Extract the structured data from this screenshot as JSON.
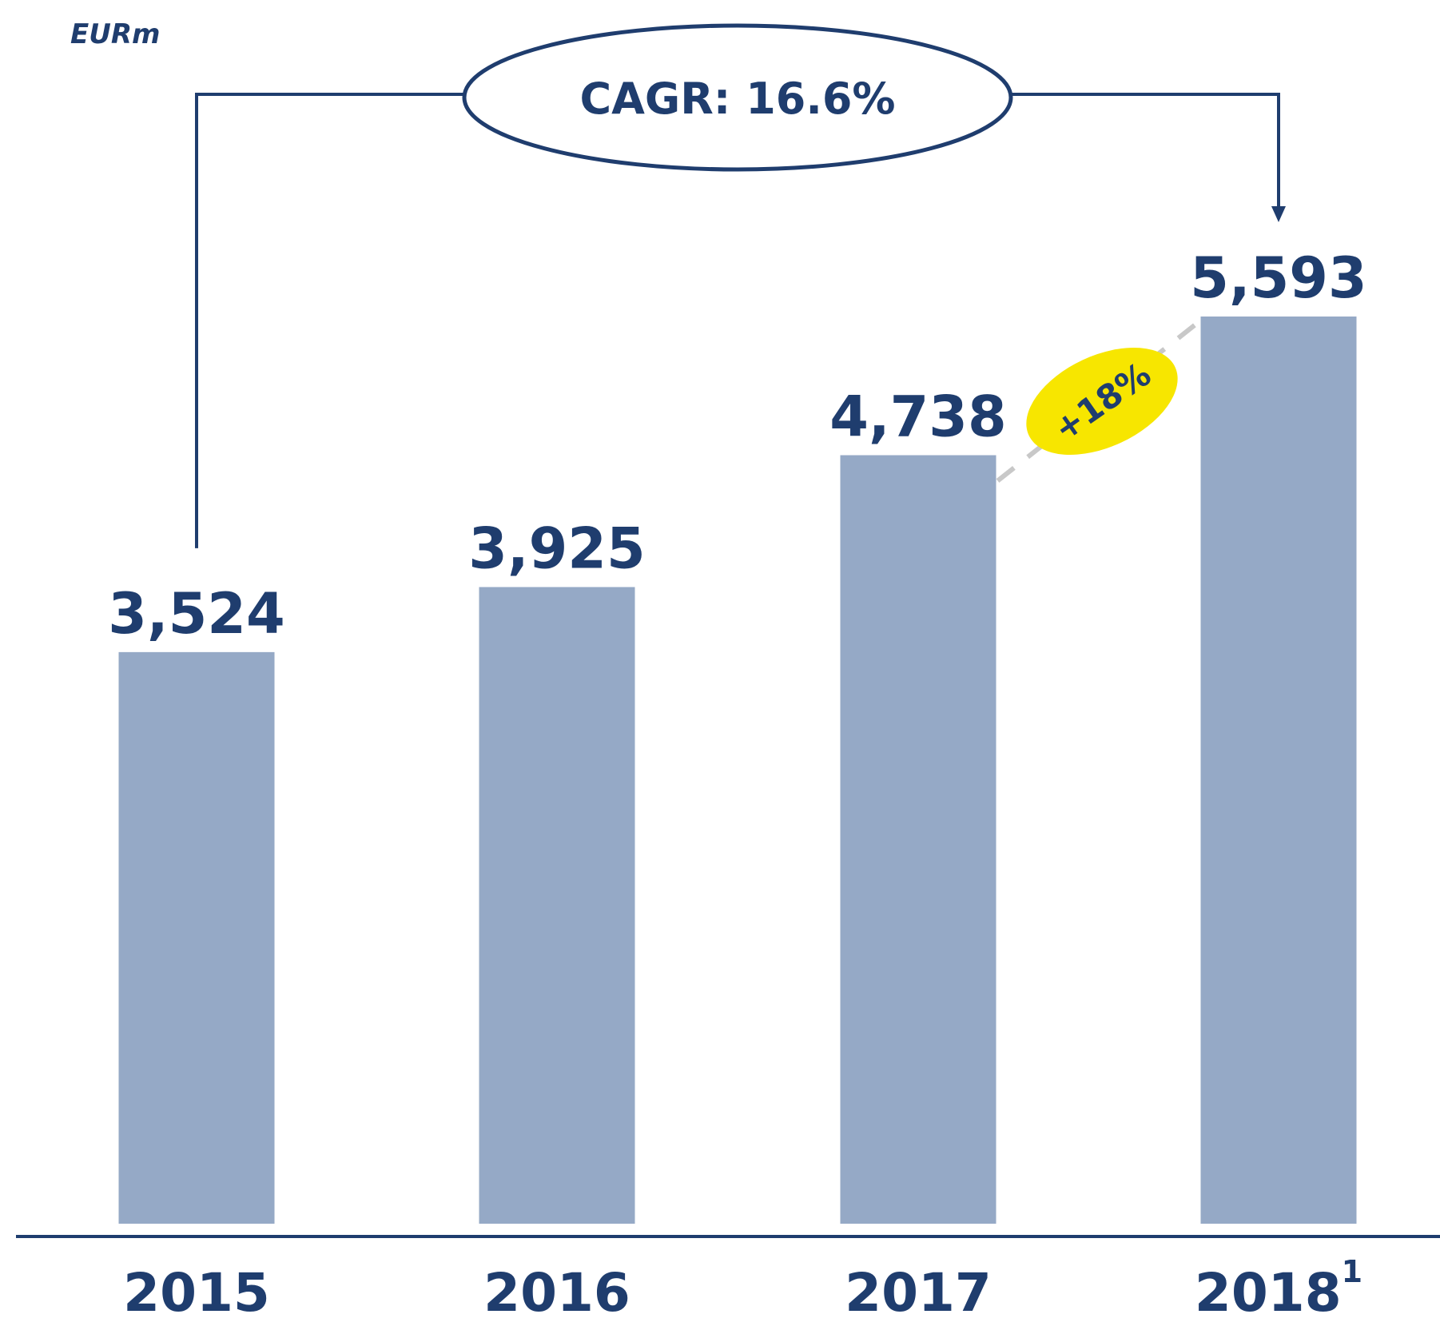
{
  "chart_data": {
    "type": "bar",
    "unit_label": "EURm",
    "categories": [
      "2015",
      "2016",
      "2017",
      "2018"
    ],
    "category_notes": [
      null,
      null,
      null,
      "1"
    ],
    "values": [
      3524,
      3925,
      4738,
      5593
    ],
    "value_labels": [
      "3,524",
      "3,925",
      "4,738",
      "5,593"
    ],
    "color": "#95a9c6",
    "annotations": {
      "cagr": "CAGR: 16.6%",
      "growth": "+18%"
    },
    "annotation_color": "#f7e600"
  }
}
